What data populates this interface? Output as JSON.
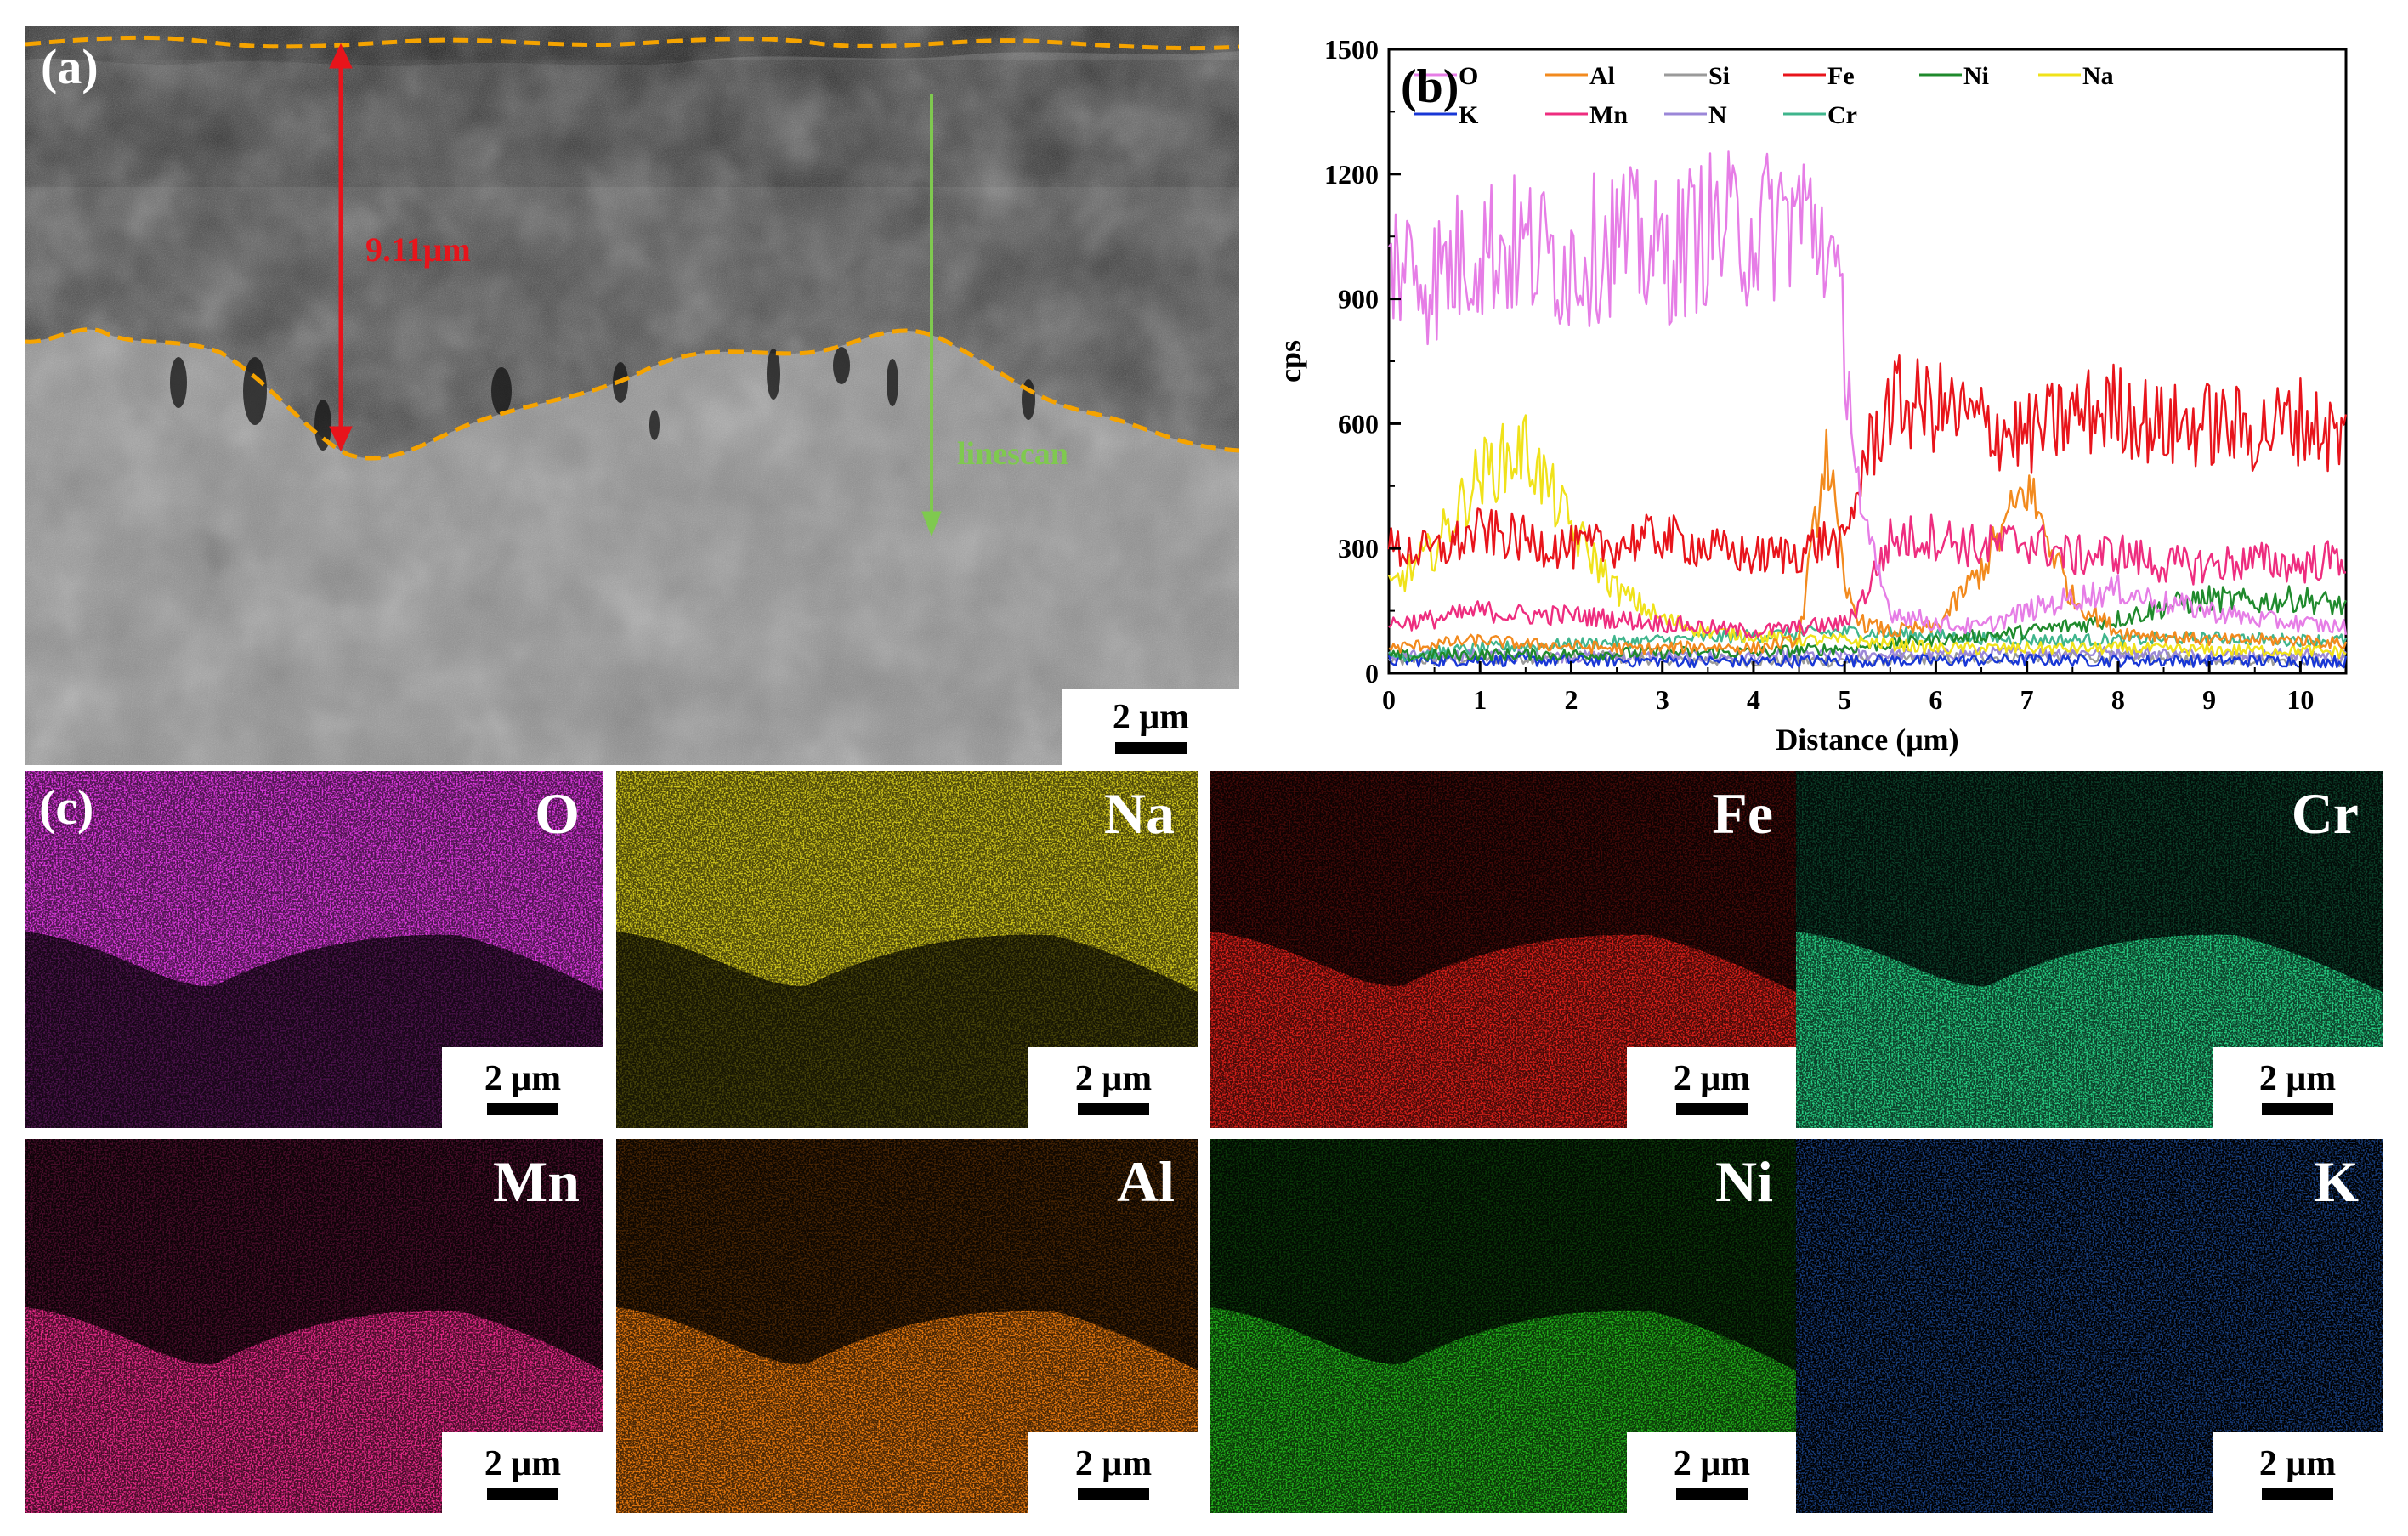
{
  "panel_a": {
    "label": "(a)",
    "thickness_text": "9.11μm",
    "linescan_text": "linescan",
    "scalebar_text": "2 μm",
    "colors": {
      "boundary": "#f5a300",
      "thickness": "#e8141b",
      "linescan": "#7fc94f"
    }
  },
  "panel_b": {
    "label": "(b)"
  },
  "panel_c": {
    "label": "(c)",
    "scalebar_text": "2 μm",
    "maps": [
      {
        "element": "O",
        "color": "#e23be4"
      },
      {
        "element": "Na",
        "color": "#d6cc1e"
      },
      {
        "element": "Fe",
        "color": "#e3221c"
      },
      {
        "element": "Cr",
        "color": "#28d487"
      },
      {
        "element": "Mn",
        "color": "#ee2c8c"
      },
      {
        "element": "Al",
        "color": "#f07e10"
      },
      {
        "element": "Ni",
        "color": "#23b61c"
      },
      {
        "element": "K",
        "color": "#2b6ee0"
      }
    ]
  },
  "chart_data": {
    "type": "line",
    "title": "",
    "xlabel": "Distance (μm)",
    "ylabel": "cps",
    "xlim": [
      0,
      10.5
    ],
    "ylim": [
      0,
      1500
    ],
    "xticks": [
      0,
      1,
      2,
      3,
      4,
      5,
      6,
      7,
      8,
      9,
      10
    ],
    "yticks": [
      0,
      300,
      600,
      900,
      1200,
      1500
    ],
    "legend": [
      "O",
      "Al",
      "Si",
      "Fe",
      "Ni",
      "Na",
      "K",
      "Mn",
      "N",
      "Cr"
    ],
    "legend_position": "top",
    "series": [
      {
        "name": "O",
        "color": "#e67de6",
        "x": [
          0,
          0.5,
          1,
          1.5,
          2,
          2.5,
          3,
          3.5,
          4,
          4.5,
          4.8,
          5.0,
          5.2,
          5.5,
          6,
          6.5,
          7,
          7.5,
          8,
          8.5,
          9,
          9.5,
          10,
          10.5
        ],
        "values": [
          1000,
          950,
          1030,
          1020,
          990,
          1050,
          1000,
          1070,
          1060,
          1110,
          1050,
          800,
          350,
          150,
          120,
          110,
          150,
          180,
          200,
          170,
          150,
          130,
          120,
          110
        ]
      },
      {
        "name": "Al",
        "color": "#f28a1e",
        "x": [
          0,
          0.5,
          1,
          1.5,
          2,
          2.5,
          3,
          3.5,
          4,
          4.5,
          4.8,
          5.0,
          5.2,
          5.5,
          6,
          6.5,
          7,
          7.5,
          8,
          8.5,
          9,
          9.5,
          10,
          10.5
        ],
        "values": [
          60,
          70,
          80,
          70,
          65,
          60,
          60,
          65,
          60,
          80,
          550,
          200,
          120,
          100,
          110,
          250,
          450,
          180,
          100,
          90,
          80,
          80,
          80,
          70
        ]
      },
      {
        "name": "Si",
        "color": "#9a9a9a",
        "x": [
          0,
          1,
          2,
          3,
          4,
          5,
          6,
          7,
          8,
          9,
          10,
          10.5
        ],
        "values": [
          30,
          35,
          40,
          35,
          30,
          30,
          35,
          40,
          40,
          35,
          35,
          30
        ]
      },
      {
        "name": "Fe",
        "color": "#e8141b",
        "x": [
          0,
          0.5,
          1,
          1.5,
          2,
          2.5,
          3,
          3.5,
          4,
          4.5,
          4.8,
          5.0,
          5.2,
          5.5,
          6,
          6.5,
          7,
          7.5,
          8,
          8.5,
          9,
          9.5,
          10,
          10.5
        ],
        "values": [
          300,
          290,
          340,
          320,
          300,
          310,
          330,
          300,
          280,
          290,
          320,
          300,
          500,
          650,
          640,
          600,
          570,
          620,
          640,
          590,
          600,
          580,
          610,
          560
        ]
      },
      {
        "name": "Ni",
        "color": "#1f8a2c",
        "x": [
          0,
          1,
          2,
          3,
          4,
          5,
          6,
          7,
          8,
          8.5,
          9,
          9.5,
          10,
          10.5
        ],
        "values": [
          40,
          45,
          45,
          50,
          50,
          60,
          80,
          100,
          130,
          160,
          180,
          170,
          180,
          160
        ]
      },
      {
        "name": "Na",
        "color": "#f0e21a",
        "x": [
          0,
          0.5,
          1,
          1.5,
          2,
          2.5,
          3,
          3.5,
          4,
          4.5,
          5,
          5.5,
          6,
          7,
          8,
          9,
          10,
          10.5
        ],
        "values": [
          200,
          300,
          480,
          540,
          350,
          200,
          130,
          100,
          90,
          80,
          80,
          70,
          60,
          60,
          60,
          55,
          55,
          50
        ]
      },
      {
        "name": "K",
        "color": "#1837d6",
        "x": [
          0,
          1,
          2,
          3,
          4,
          5,
          6,
          7,
          8,
          9,
          10,
          10.5
        ],
        "values": [
          30,
          32,
          30,
          30,
          28,
          30,
          30,
          32,
          30,
          30,
          30,
          28
        ]
      },
      {
        "name": "Mn",
        "color": "#ee2d7f",
        "x": [
          0,
          0.5,
          1,
          1.5,
          2,
          2.5,
          3,
          3.5,
          4,
          4.5,
          5,
          5.2,
          5.5,
          6,
          6.5,
          7,
          7.5,
          8,
          8.5,
          9,
          9.5,
          10,
          10.5
        ],
        "values": [
          120,
          130,
          150,
          140,
          140,
          130,
          120,
          110,
          100,
          110,
          120,
          180,
          320,
          330,
          300,
          320,
          280,
          290,
          260,
          260,
          270,
          260,
          280
        ]
      },
      {
        "name": "N",
        "color": "#9b87d8",
        "x": [
          0,
          1,
          2,
          3,
          4,
          5,
          6,
          7,
          8,
          9,
          10,
          10.5
        ],
        "values": [
          40,
          45,
          40,
          40,
          40,
          45,
          45,
          50,
          50,
          45,
          45,
          40
        ]
      },
      {
        "name": "Cr",
        "color": "#3fb58c",
        "x": [
          0,
          1,
          2,
          3,
          4,
          5,
          6,
          7,
          8,
          9,
          10,
          10.5
        ],
        "values": [
          40,
          60,
          70,
          80,
          90,
          100,
          90,
          80,
          80,
          85,
          80,
          80
        ]
      }
    ]
  }
}
